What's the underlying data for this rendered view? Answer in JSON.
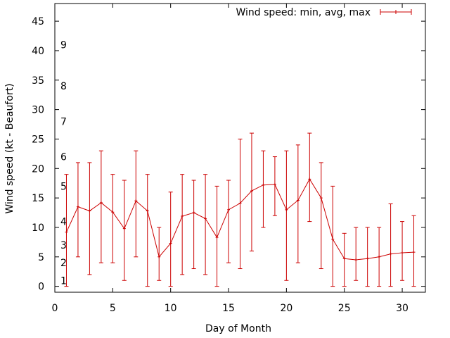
{
  "chart_data": {
    "type": "line",
    "title": "",
    "xlabel": "Day of Month",
    "ylabel": "Wind speed (kt - Beaufort)",
    "xlim": [
      0,
      32
    ],
    "ylim": [
      -1,
      48
    ],
    "xticks": [
      0,
      5,
      10,
      15,
      20,
      25,
      30
    ],
    "yticks": [
      0,
      5,
      10,
      15,
      20,
      25,
      30,
      35,
      40,
      45
    ],
    "beaufort_labels": [
      {
        "label": "1",
        "value": 1
      },
      {
        "label": "2",
        "value": 4
      },
      {
        "label": "3",
        "value": 7
      },
      {
        "label": "4",
        "value": 11
      },
      {
        "label": "5",
        "value": 17
      },
      {
        "label": "6",
        "value": 22
      },
      {
        "label": "7",
        "value": 28
      },
      {
        "label": "8",
        "value": 34
      },
      {
        "label": "9",
        "value": 41
      }
    ],
    "legend": {
      "label": "Wind speed: min, avg, max",
      "position": "top-right"
    },
    "color": "#cc0000",
    "series": [
      {
        "name": "Wind speed: min, avg, max",
        "x": [
          1,
          2,
          3,
          4,
          5,
          6,
          7,
          8,
          9,
          10,
          11,
          12,
          13,
          14,
          15,
          16,
          17,
          18,
          19,
          20,
          21,
          22,
          23,
          24,
          25,
          26,
          27,
          28,
          29,
          30,
          31
        ],
        "avg": [
          9.2,
          13.5,
          12.8,
          14.2,
          12.6,
          9.8,
          14.5,
          12.8,
          5.0,
          7.3,
          11.9,
          12.5,
          11.5,
          8.3,
          13.0,
          14.1,
          16.2,
          17.2,
          17.3,
          13.0,
          14.6,
          18.2,
          15.0,
          8.0,
          4.7,
          4.5,
          4.7,
          5.0,
          5.5,
          5.7,
          5.8
        ],
        "min": [
          0,
          5,
          2,
          4,
          4,
          1,
          5,
          0,
          1,
          0,
          2,
          3,
          2,
          0,
          4,
          3,
          6,
          10,
          12,
          1,
          4,
          11,
          3,
          0,
          0,
          1,
          0,
          0,
          0,
          1,
          0
        ],
        "max": [
          19,
          21,
          21,
          23,
          19,
          18,
          23,
          19,
          10,
          16,
          19,
          18,
          19,
          17,
          18,
          25,
          26,
          23,
          22,
          23,
          24,
          26,
          21,
          17,
          9,
          10,
          10,
          10,
          14,
          11,
          12
        ]
      }
    ]
  }
}
